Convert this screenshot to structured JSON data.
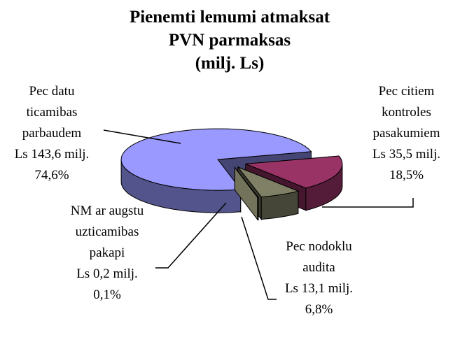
{
  "chart_data": {
    "type": "pie3d",
    "title": [
      "Pienemti lemumi atmaksat",
      "PVN parmaksas",
      "(milj. Ls)"
    ],
    "categories": [
      "Pec citiem kontroles pasakumiem",
      "Pec nodoklu audita",
      "NM ar augstu uzticamibas pakapi",
      "Pec datu ticamibas parbaudem"
    ],
    "values": [
      35.5,
      13.1,
      0.2,
      143.6
    ],
    "value_labels": [
      "Ls 35,5 milj. 18,5%",
      "Ls 13,1 milj. 6,8%",
      "Ls 0,2 milj. 0,1%",
      "Ls 143,6 milj.  74,6%"
    ],
    "colors": [
      "#993366",
      "#808066",
      "#ffffcc",
      "#9999ff"
    ],
    "exploded": true
  }
}
